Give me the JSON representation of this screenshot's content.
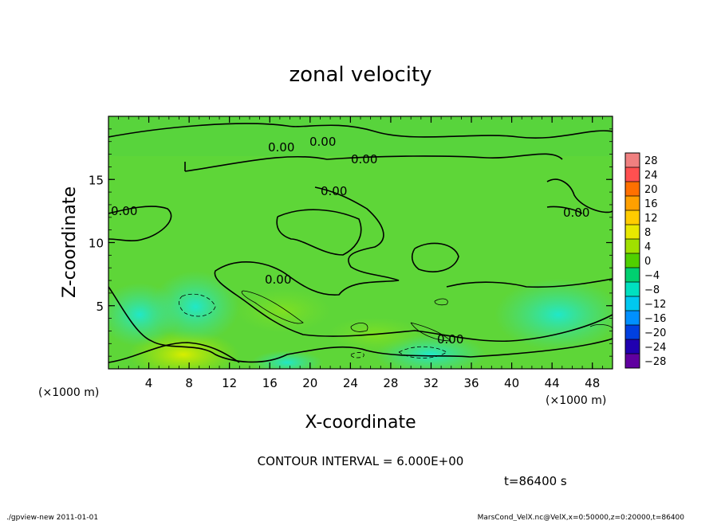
{
  "chart_data": {
    "type": "heatmap",
    "title": "zonal velocity",
    "xlabel": "X-coordinate",
    "ylabel": "Z-coordinate",
    "x_unit": "(×1000 m)",
    "y_unit": "(×1000 m)",
    "xlim": [
      0,
      50
    ],
    "ylim": [
      0,
      20
    ],
    "x_ticks": [
      4,
      8,
      12,
      16,
      20,
      24,
      28,
      32,
      36,
      40,
      44,
      48
    ],
    "y_ticks": [
      5,
      10,
      15
    ],
    "contour_interval_text": "CONTOUR INTERVAL = 6.000E+00",
    "contour_labels": [
      "0.00",
      "0.00",
      "0.00",
      "0.00",
      "0.00",
      "0.00",
      "0.00",
      "0.00"
    ],
    "time_text": "t=86400  s",
    "colorbar": {
      "levels": [
        28,
        24,
        20,
        16,
        12,
        8,
        4,
        0,
        -4,
        -8,
        -12,
        -16,
        -20,
        -24,
        -28
      ],
      "colors": [
        "#f08080",
        "#ff5050",
        "#ff7000",
        "#ffa000",
        "#ffcc00",
        "#e8e800",
        "#a0e000",
        "#50d000",
        "#00d070",
        "#00e0c0",
        "#00c8f0",
        "#0090ff",
        "#0040e0",
        "#2000b0",
        "#6000a0"
      ]
    },
    "footer_left": "./gpview-new   2011-01-01",
    "footer_right": "MarsCond_VelX.nc@VelX,x=0:50000,z=0:20000,t=86400"
  }
}
